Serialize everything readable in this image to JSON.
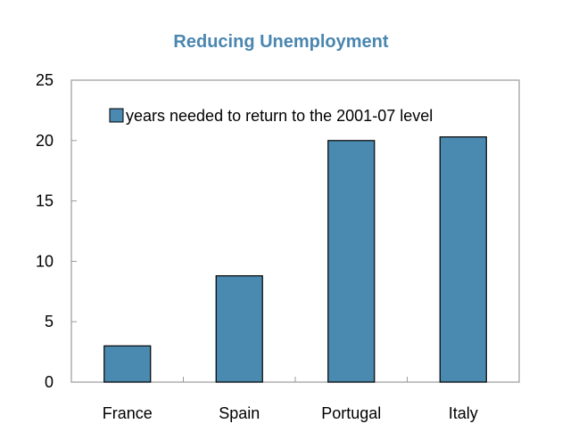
{
  "chart_data": {
    "type": "bar",
    "title": "Reducing Unemployment",
    "categories": [
      "France",
      "Spain",
      "Portugal",
      "Italy"
    ],
    "series": [
      {
        "name": "years needed to return to the 2001-07 level",
        "values": [
          3.0,
          8.8,
          20.0,
          20.3
        ]
      }
    ],
    "ylim": [
      0,
      25
    ],
    "yticks": [
      "0",
      "5",
      "10",
      "15",
      "20",
      "25"
    ],
    "xlabel": "",
    "ylabel": "",
    "grid": false,
    "legend_position": "top",
    "bar_color": "#4a8ab0"
  }
}
